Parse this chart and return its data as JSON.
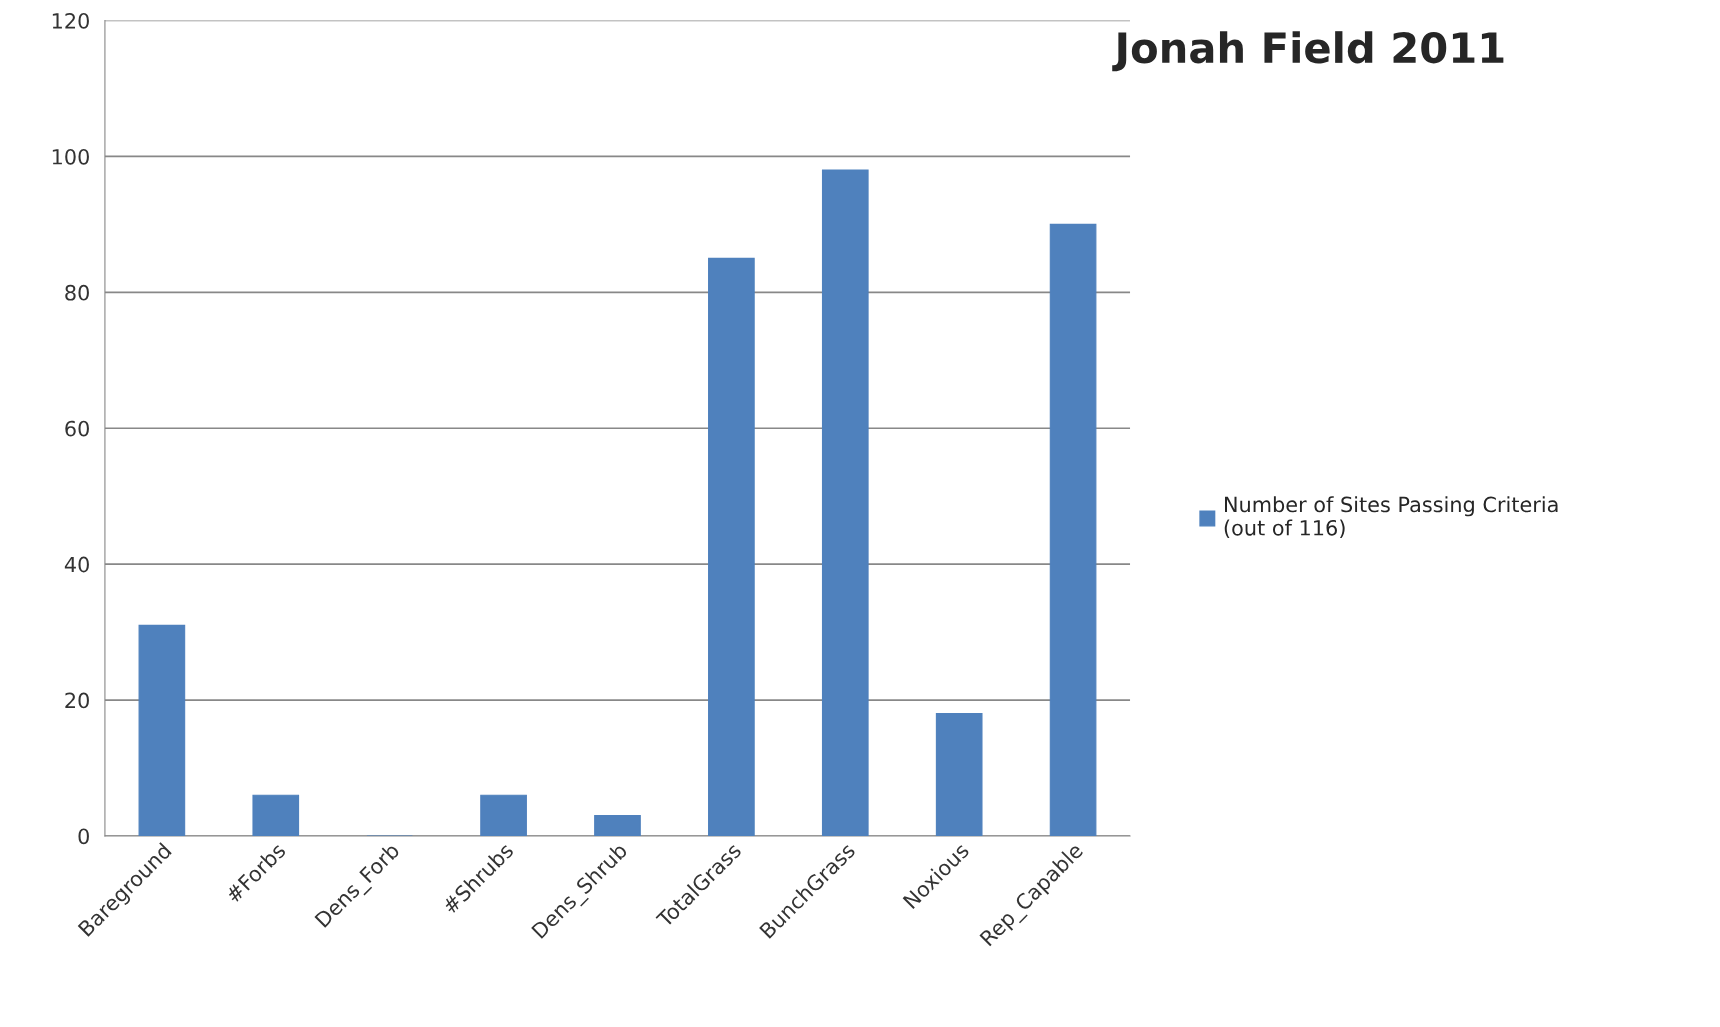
{
  "chart_data": {
    "type": "bar",
    "title": "Jonah Field 2011",
    "categories": [
      "Bareground",
      "#Forbs",
      "Dens_Forb",
      "#Shrubs",
      "Dens_Shrub",
      "TotalGrass",
      "BunchGrass",
      "Noxious",
      "Rep_Capable"
    ],
    "series": [
      {
        "name": "Number of Sites Passing Criteria\n(out of 116)",
        "color": "#4f81bd",
        "values": [
          31,
          6,
          0,
          6,
          3,
          85,
          98,
          18,
          90
        ]
      }
    ],
    "ylim": [
      0,
      120
    ],
    "yticks": [
      0,
      20,
      40,
      60,
      80,
      100,
      120
    ],
    "grid": "y",
    "legend": "right"
  }
}
